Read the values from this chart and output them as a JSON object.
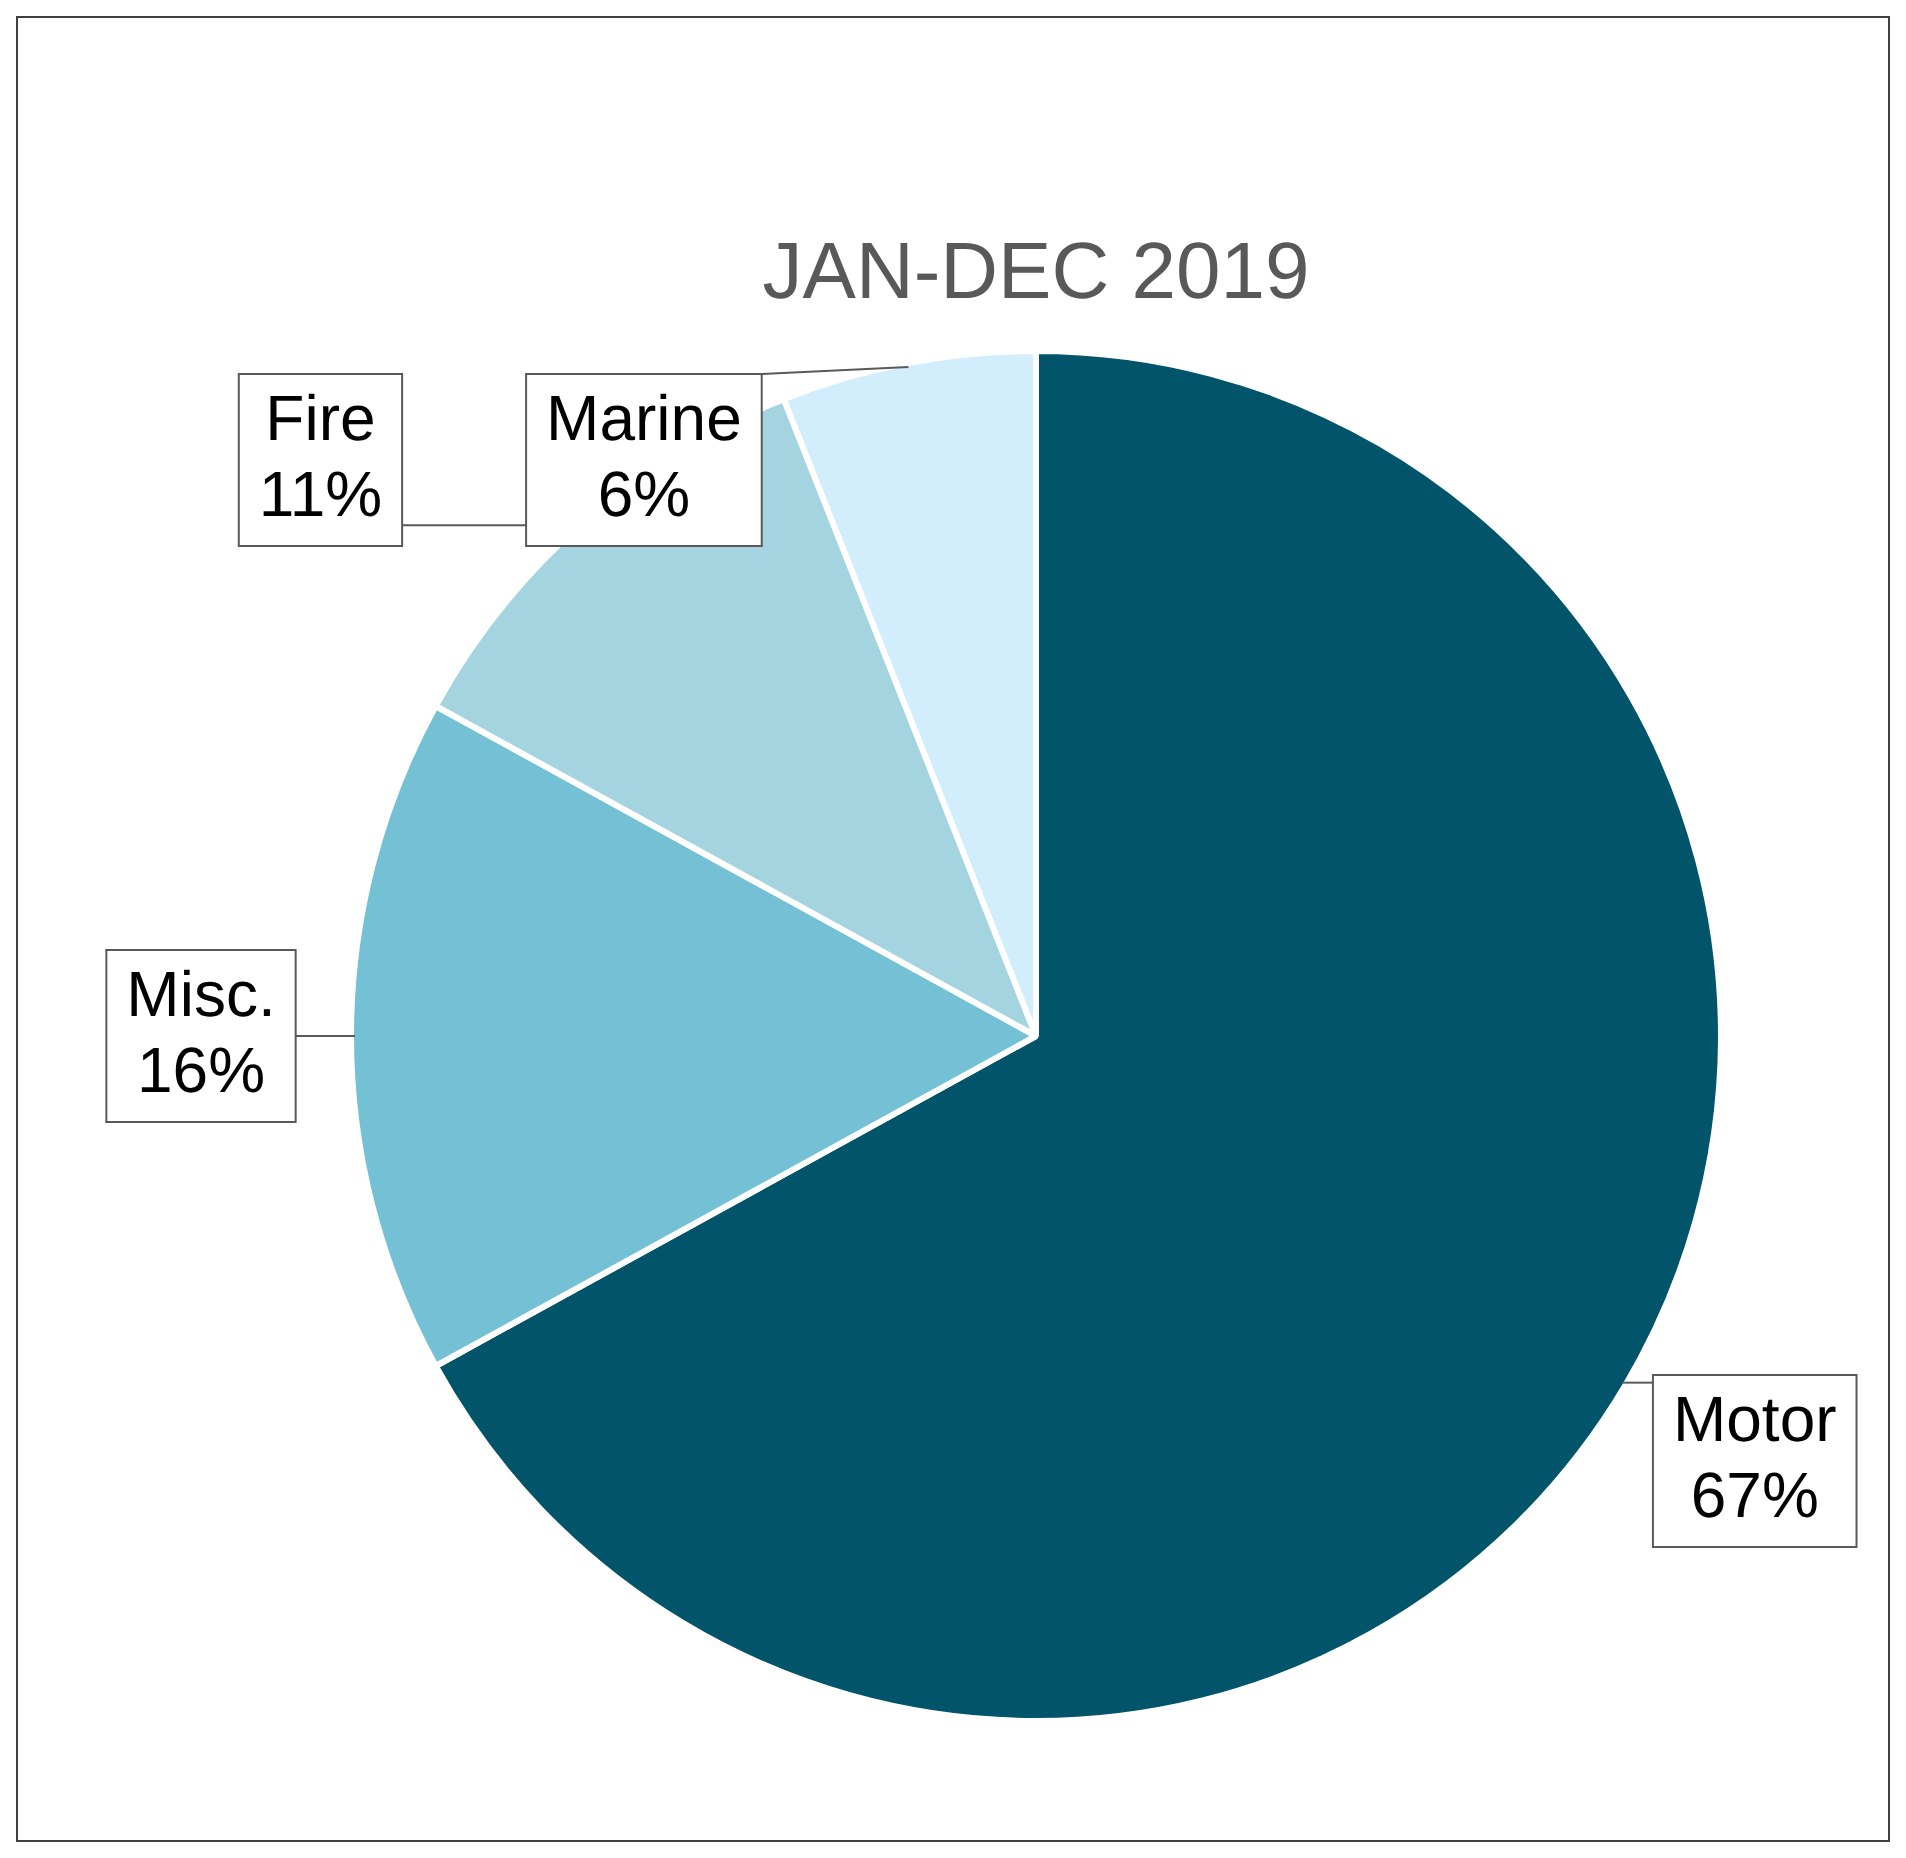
{
  "chart_data": {
    "type": "pie",
    "title": "JAN-DEC 2019",
    "categories": [
      "Motor",
      "Misc.",
      "Fire",
      "Marine"
    ],
    "values": [
      67,
      16,
      11,
      6
    ],
    "colors": [
      "#02546b",
      "#74c0d4",
      "#a5d4e1",
      "#d2edfb"
    ],
    "value_labels": [
      "67%",
      "16%",
      "11%",
      "6%"
    ],
    "legend": false
  }
}
